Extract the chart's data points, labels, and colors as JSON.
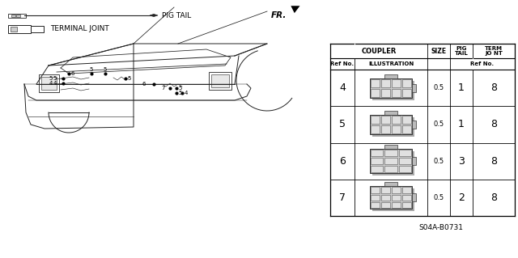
{
  "part_number": "S04A-B0731",
  "bg_color": "#ffffff",
  "table_rows": [
    {
      "ref": "4",
      "size": "0.5",
      "pig_tail": "1",
      "term_jnt": "8"
    },
    {
      "ref": "5",
      "size": "0.5",
      "pig_tail": "1",
      "term_jnt": "8"
    },
    {
      "ref": "6",
      "size": "0.5",
      "pig_tail": "3",
      "term_jnt": "8"
    },
    {
      "ref": "7",
      "size": "0.5",
      "pig_tail": "2",
      "term_jnt": "8"
    }
  ],
  "pigtail_label": "PIG TAIL",
  "terminal_label": "TERMINAL JOINT",
  "fr_label": "FR.",
  "coupler_header": "COUPLER",
  "size_header": "SIZE",
  "pig_header1": "PIG",
  "pig_header2": "TAIL",
  "term_header1": "TERM",
  "term_header2": "JO NT",
  "ref_no_label": "Ref No.",
  "illus_label": "ILLUSTRATION",
  "ref_no_label2": "Ref No.",
  "line_color": "#222222",
  "table_line_color": "#000000",
  "connector_colors": [
    "#b0b0b0",
    "#a8a8a8",
    "#b8b8b8",
    "#a0a0a0"
  ]
}
